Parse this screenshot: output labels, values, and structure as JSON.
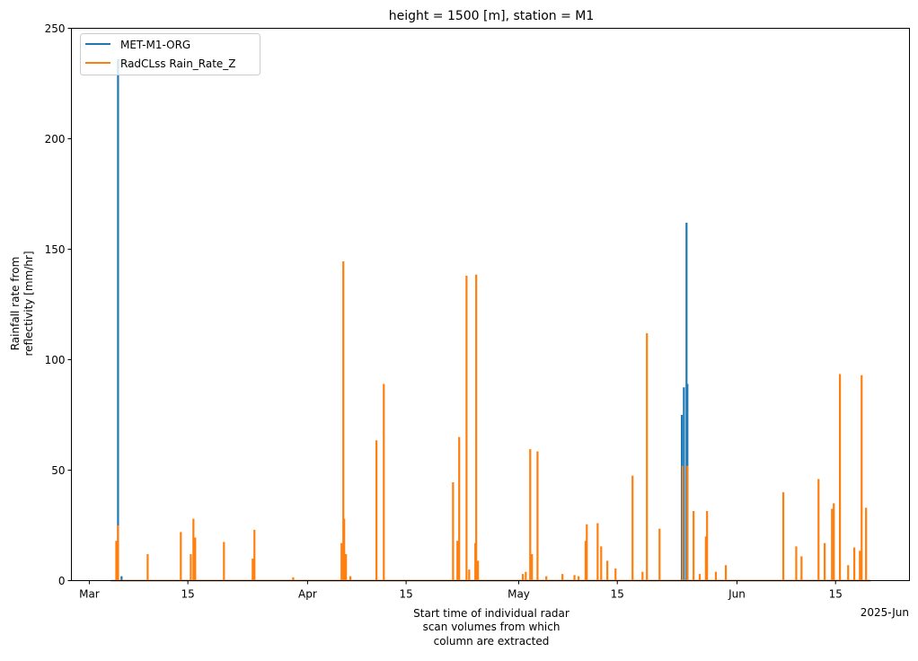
{
  "chart_data": {
    "type": "line",
    "title": "height = 1500 [m], station = M1",
    "xlabel": [
      "Start time of individual radar",
      "scan volumes  from which",
      "column are extracted"
    ],
    "ylabel": [
      "Rainfall rate from",
      "reflectivity [mm/hr]"
    ],
    "xlim": [
      "2025-02-26T11:00",
      "2025-06-25T12:00"
    ],
    "ylim": [
      0,
      250
    ],
    "yticks": [
      0,
      50,
      100,
      150,
      200,
      250
    ],
    "xticks": [
      {
        "date": "2025-03-01",
        "label": "Mar"
      },
      {
        "date": "2025-03-15",
        "label": "15"
      },
      {
        "date": "2025-04-01",
        "label": "Apr"
      },
      {
        "date": "2025-04-15",
        "label": "15"
      },
      {
        "date": "2025-05-01",
        "label": "May"
      },
      {
        "date": "2025-05-15",
        "label": "15"
      },
      {
        "date": "2025-06-01",
        "label": "Jun"
      },
      {
        "date": "2025-06-15",
        "label": "15"
      }
    ],
    "x_offset_label": "2025-Jun",
    "grid": false,
    "legend_position": "top-left",
    "series": [
      {
        "name": "MET-M1-ORG",
        "color": "#1f77b4",
        "baseline": [
          "2025-03-04T00:00",
          "2025-06-20T00:00"
        ],
        "points": [
          [
            "2025-03-05T02:00",
            236
          ],
          [
            "2025-03-05T14:00",
            2
          ],
          [
            "2025-05-24T04:00",
            75
          ],
          [
            "2025-05-24T11:00",
            87.5
          ],
          [
            "2025-05-24T20:00",
            162
          ],
          [
            "2025-05-24T23:00",
            89
          ]
        ]
      },
      {
        "name": "RadCLss Rain_Rate_Z",
        "color": "#ff7f0e",
        "baseline": [
          "2025-03-04T12:00",
          "2025-06-20T00:00"
        ],
        "points": [
          [
            "2025-03-04T20:00",
            18
          ],
          [
            "2025-03-05T02:00",
            25
          ],
          [
            "2025-03-09T07:00",
            12
          ],
          [
            "2025-03-14T00:00",
            22
          ],
          [
            "2025-03-15T10:00",
            12
          ],
          [
            "2025-03-15T19:00",
            28
          ],
          [
            "2025-03-16T01:00",
            19.5
          ],
          [
            "2025-03-20T03:00",
            17.5
          ],
          [
            "2025-03-24T05:00",
            10
          ],
          [
            "2025-03-24T11:00",
            23
          ],
          [
            "2025-03-29T23:00",
            1.5
          ],
          [
            "2025-04-05T20:00",
            17
          ],
          [
            "2025-04-06T02:00",
            144.5
          ],
          [
            "2025-04-06T05:00",
            28
          ],
          [
            "2025-04-06T11:00",
            12
          ],
          [
            "2025-04-07T02:00",
            2
          ],
          [
            "2025-04-10T19:00",
            63.5
          ],
          [
            "2025-04-11T20:00",
            89
          ],
          [
            "2025-04-21T16:00",
            44.5
          ],
          [
            "2025-04-22T07:00",
            18
          ],
          [
            "2025-04-22T13:00",
            65
          ],
          [
            "2025-04-23T14:00",
            138
          ],
          [
            "2025-04-23T23:00",
            5
          ],
          [
            "2025-04-24T20:00",
            17
          ],
          [
            "2025-04-24T23:00",
            138.5
          ],
          [
            "2025-04-25T05:00",
            9
          ],
          [
            "2025-05-01T14:00",
            3
          ],
          [
            "2025-05-02T00:00",
            4
          ],
          [
            "2025-05-02T15:00",
            59.5
          ],
          [
            "2025-05-02T21:00",
            12
          ],
          [
            "2025-05-03T16:00",
            58.5
          ],
          [
            "2025-05-04T22:00",
            2
          ],
          [
            "2025-05-07T05:00",
            3
          ],
          [
            "2025-05-08T22:00",
            2.5
          ],
          [
            "2025-05-09T12:00",
            2
          ],
          [
            "2025-05-10T12:00",
            18
          ],
          [
            "2025-05-10T16:00",
            25.5
          ],
          [
            "2025-05-12T05:00",
            26
          ],
          [
            "2025-05-12T17:00",
            15.5
          ],
          [
            "2025-05-13T14:00",
            9
          ],
          [
            "2025-05-14T18:00",
            5.5
          ],
          [
            "2025-05-17T04:00",
            47.5
          ],
          [
            "2025-05-18T14:00",
            4
          ],
          [
            "2025-05-19T05:00",
            112
          ],
          [
            "2025-05-21T00:00",
            23.5
          ],
          [
            "2025-05-24T07:00",
            52
          ],
          [
            "2025-05-24T23:00",
            52
          ],
          [
            "2025-05-25T20:00",
            31.5
          ],
          [
            "2025-05-26T17:00",
            3
          ],
          [
            "2025-05-27T14:00",
            20
          ],
          [
            "2025-05-27T18:00",
            31.5
          ],
          [
            "2025-05-29T00:00",
            4
          ],
          [
            "2025-05-30T10:00",
            7
          ],
          [
            "2025-06-07T14:00",
            40
          ],
          [
            "2025-06-09T10:00",
            15.5
          ],
          [
            "2025-06-10T04:00",
            11
          ],
          [
            "2025-06-12T14:00",
            46
          ],
          [
            "2025-06-13T11:00",
            17
          ],
          [
            "2025-06-14T12:00",
            32.5
          ],
          [
            "2025-06-14T18:00",
            35
          ],
          [
            "2025-06-15T15:00",
            93.5
          ],
          [
            "2025-06-16T19:00",
            7
          ],
          [
            "2025-06-17T16:00",
            15
          ],
          [
            "2025-06-18T11:00",
            13.5
          ],
          [
            "2025-06-18T17:00",
            93
          ],
          [
            "2025-06-19T08:00",
            33
          ]
        ]
      }
    ]
  }
}
